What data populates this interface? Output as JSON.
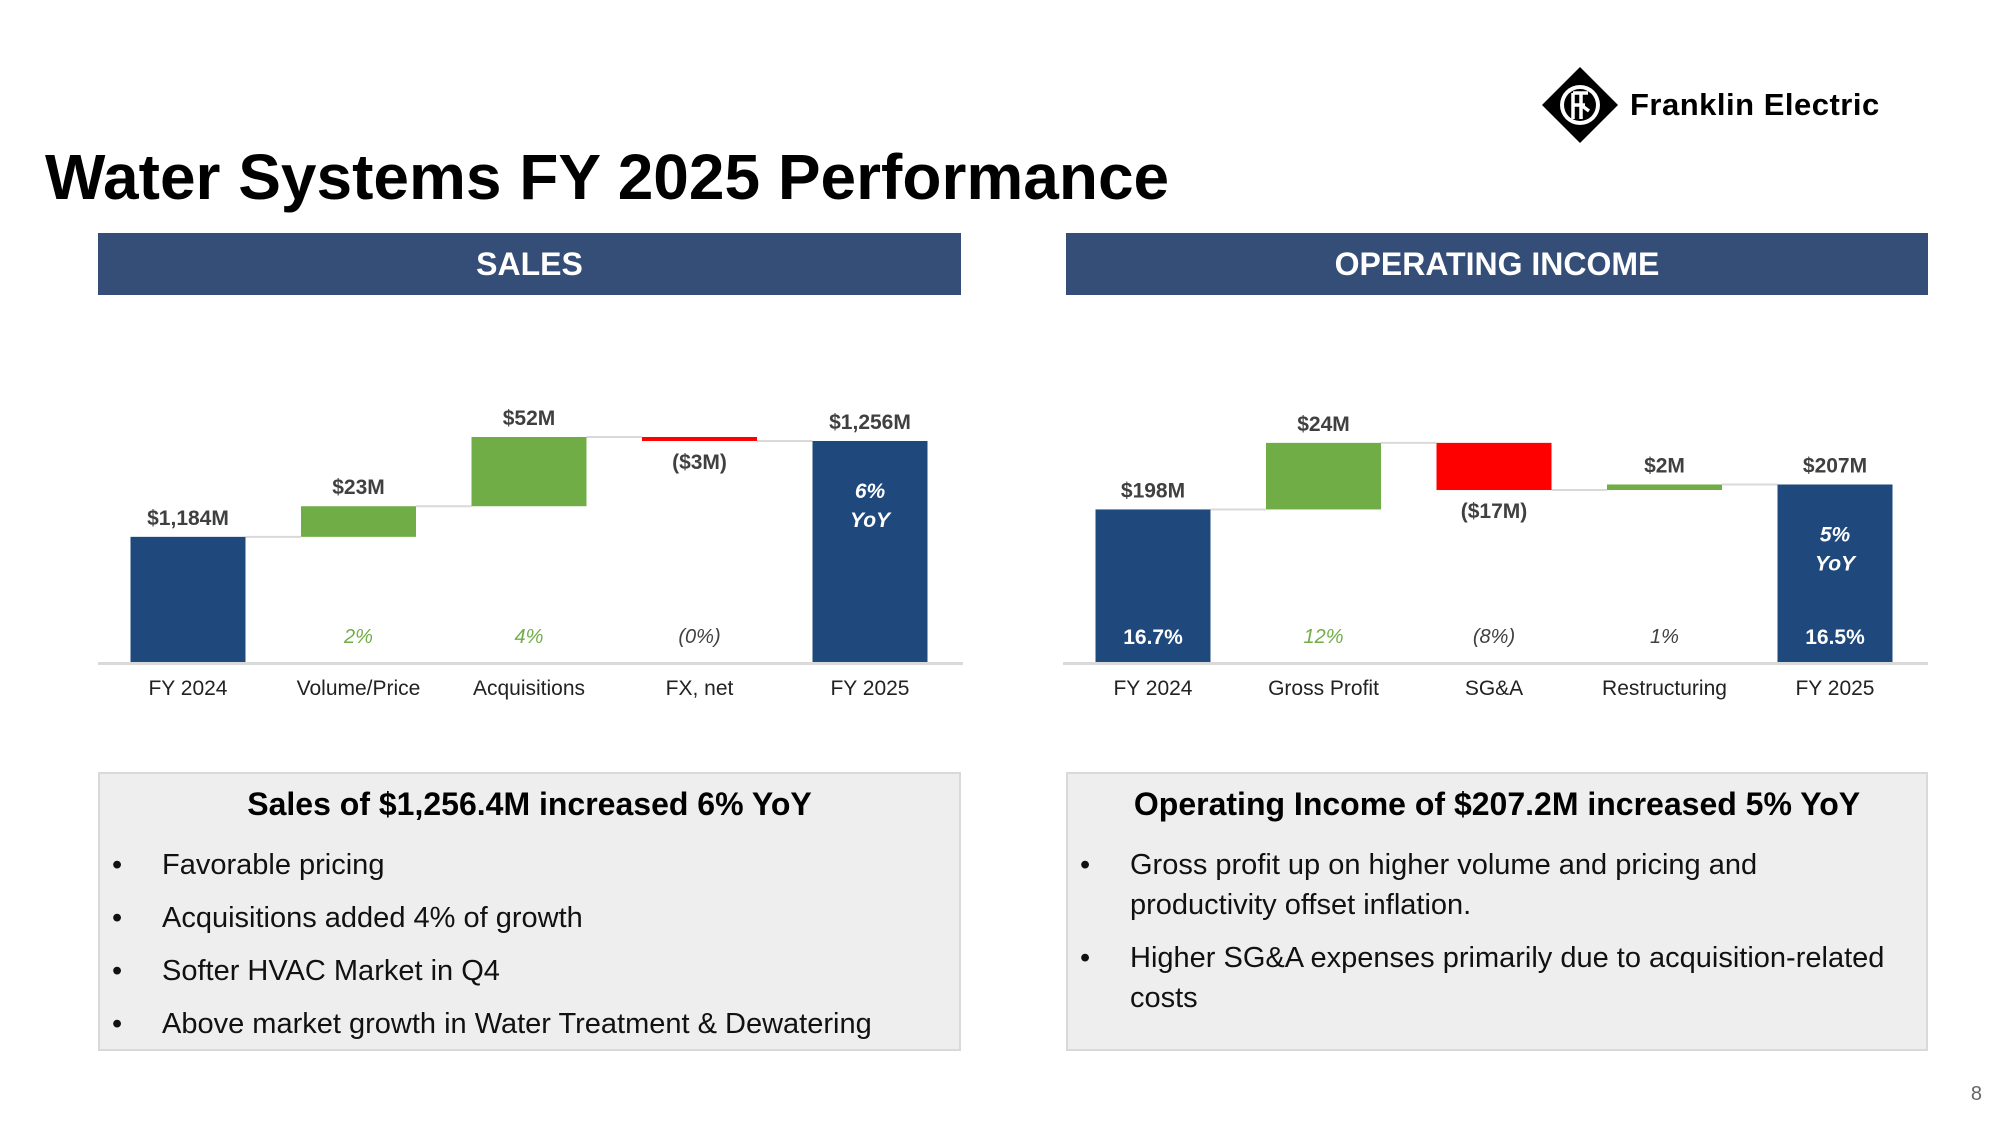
{
  "logo": {
    "name": "Franklin Electric"
  },
  "title": "Water Systems FY 2025 Performance",
  "colors": {
    "header_bg": "#344e77",
    "navy": "#1f497d",
    "green": "#70ad47",
    "red": "#ff0000",
    "green_text": "#70ad47"
  },
  "sales": {
    "header": "SALES",
    "summary_title": "Sales of $1,256.4M increased 6% YoY",
    "bullets": [
      "Favorable pricing",
      "Acquisitions added 4% of growth",
      "Softer HVAC Market in Q4",
      "Above market growth in Water Treatment & Dewatering"
    ]
  },
  "operating": {
    "header": "OPERATING INCOME",
    "summary_title": "Operating Income of $207.2M increased 5% YoY",
    "bullets": [
      "Gross profit up on higher volume and pricing and productivity offset inflation.",
      "Higher SG&A expenses primarily due to acquisition-related costs"
    ]
  },
  "chart_data": [
    {
      "type": "waterfall",
      "title": "SALES",
      "units": "$M",
      "categories": [
        "FY 2024",
        "Volume/Price",
        "Acquisitions",
        "FX, net",
        "FY 2025"
      ],
      "values": [
        1184,
        23,
        52,
        -3,
        1256
      ],
      "kinds": [
        "total",
        "delta",
        "delta",
        "delta",
        "total"
      ],
      "value_labels": [
        "$1,184M",
        "$23M",
        "$52M",
        "($3M)",
        "$1,256M"
      ],
      "pct_labels": [
        "",
        "2%",
        "4%",
        "(0%)",
        ""
      ],
      "total_note": [
        "6%",
        "YoY"
      ],
      "margin_labels": [
        "",
        "",
        "",
        "",
        ""
      ],
      "ylim": [
        1090,
        1265
      ]
    },
    {
      "type": "waterfall",
      "title": "OPERATING INCOME",
      "units": "$M",
      "categories": [
        "FY 2024",
        "Gross Profit",
        "SG&A",
        "Restructuring",
        "FY 2025"
      ],
      "values": [
        198,
        24,
        -17,
        2,
        207
      ],
      "kinds": [
        "total",
        "delta",
        "delta",
        "delta",
        "total"
      ],
      "value_labels": [
        "$198M",
        "$24M",
        "($17M)",
        "$2M",
        "$207M"
      ],
      "pct_labels": [
        "",
        "12%",
        "(8%)",
        "1%",
        ""
      ],
      "total_note": [
        "5%",
        "YoY"
      ],
      "margin_labels": [
        "16.7%",
        "",
        "",
        "",
        "16.5%"
      ],
      "ylim": [
        143,
        227
      ]
    }
  ],
  "page_number": "8"
}
